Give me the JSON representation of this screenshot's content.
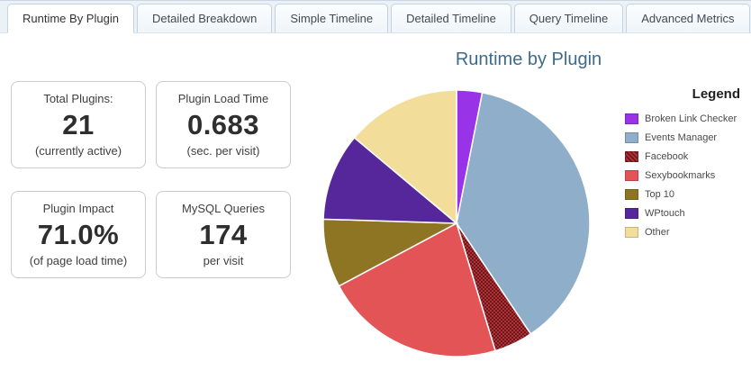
{
  "tabs": {
    "items": [
      {
        "label": "Runtime By Plugin",
        "active": true
      },
      {
        "label": "Detailed Breakdown",
        "active": false
      },
      {
        "label": "Simple Timeline",
        "active": false
      },
      {
        "label": "Detailed Timeline",
        "active": false
      },
      {
        "label": "Query Timeline",
        "active": false
      },
      {
        "label": "Advanced Metrics",
        "active": false
      }
    ]
  },
  "stats": {
    "boxes": [
      {
        "label": "Total Plugins:",
        "value": "21",
        "sub": "(currently active)"
      },
      {
        "label": "Plugin Load Time",
        "value": "0.683",
        "sub": "(sec. per visit)"
      },
      {
        "label": "Plugin Impact",
        "value": "71.0%",
        "sub": "(of page load time)"
      },
      {
        "label": "MySQL Queries",
        "value": "174",
        "sub": "per visit"
      }
    ]
  },
  "chart_data": {
    "type": "pie",
    "title": "Runtime by Plugin",
    "title_color": "#3B6B8F",
    "legend_title": "Legend",
    "legend_position": "right",
    "start_angle_deg": -90,
    "direction": "clockwise",
    "units": "percent of plugin runtime",
    "series": [
      {
        "label": "Broken Link Checker",
        "value_pct": 3.1,
        "color": "#9933E8"
      },
      {
        "label": "Events Manager",
        "value_pct": 37.5,
        "color": "#8FAEC9"
      },
      {
        "label": "Facebook",
        "value_pct": 4.7,
        "color": "#A93439",
        "pattern": "crosshatch",
        "pattern_color": "#701418"
      },
      {
        "label": "Sexybookmarks",
        "value_pct": 21.9,
        "color": "#E25456"
      },
      {
        "label": "Top 10",
        "value_pct": 8.3,
        "color": "#8E7523"
      },
      {
        "label": "WPtouch",
        "value_pct": 10.6,
        "color": "#55279B"
      },
      {
        "label": "Other",
        "value_pct": 13.9,
        "color": "#F2DE9A"
      }
    ]
  }
}
